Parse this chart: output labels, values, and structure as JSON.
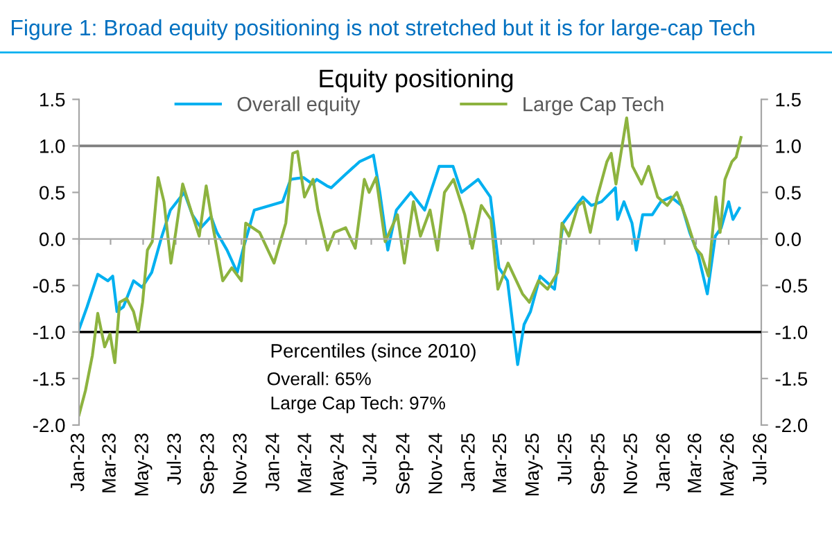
{
  "chart_data": {
    "type": "line",
    "title": "Figure 1: Broad equity positioning is not stretched but it is for large-cap Tech",
    "subtitle": "Equity positioning",
    "xlim": [
      "2023-01-01",
      "2026-07-01"
    ],
    "xticks": [
      {
        "value": "2023-01-01",
        "label": "Jan-23"
      },
      {
        "value": "2023-03-01",
        "label": "Mar-23"
      },
      {
        "value": "2023-05-01",
        "label": "May-23"
      },
      {
        "value": "2023-07-01",
        "label": "Jul-23"
      },
      {
        "value": "2023-09-01",
        "label": "Sep-23"
      },
      {
        "value": "2023-11-01",
        "label": "Nov-23"
      },
      {
        "value": "2024-01-01",
        "label": "Jan-24"
      },
      {
        "value": "2024-03-01",
        "label": "Mar-24"
      },
      {
        "value": "2024-05-01",
        "label": "May-24"
      },
      {
        "value": "2024-07-01",
        "label": "Jul-24"
      },
      {
        "value": "2024-09-01",
        "label": "Sep-24"
      },
      {
        "value": "2024-11-01",
        "label": "Nov-24"
      },
      {
        "value": "2025-01-01",
        "label": "Jan-25"
      },
      {
        "value": "2025-03-01",
        "label": "Mar-25"
      },
      {
        "value": "2025-05-01",
        "label": "May-25"
      },
      {
        "value": "2025-07-01",
        "label": "Jul-25"
      },
      {
        "value": "2025-09-01",
        "label": "Sep-25"
      },
      {
        "value": "2025-11-01",
        "label": "Nov-25"
      },
      {
        "value": "2026-01-01",
        "label": "Jan-26"
      },
      {
        "value": "2026-03-01",
        "label": "Mar-26"
      },
      {
        "value": "2026-05-01",
        "label": "May-26"
      },
      {
        "value": "2026-07-01",
        "label": "Jul-26"
      }
    ],
    "ylim": [
      -2.0,
      1.5
    ],
    "yticks": [
      {
        "value": -2.0,
        "label": "-2.0"
      },
      {
        "value": -1.5,
        "label": "-1.5"
      },
      {
        "value": -1.0,
        "label": "-1.0"
      },
      {
        "value": -0.5,
        "label": "-0.5"
      },
      {
        "value": 0.0,
        "label": "0.0"
      },
      {
        "value": 0.5,
        "label": "0.5"
      },
      {
        "value": 1.0,
        "label": "1.0"
      },
      {
        "value": 1.5,
        "label": "1.5"
      }
    ],
    "y2lim": [
      -2.0,
      1.5
    ],
    "y2ticks": [
      {
        "value": -2.0,
        "label": "-2.0"
      },
      {
        "value": -1.5,
        "label": "-1.5"
      },
      {
        "value": -1.0,
        "label": "-1.0"
      },
      {
        "value": -0.5,
        "label": "-0.5"
      },
      {
        "value": 0.0,
        "label": "0.0"
      },
      {
        "value": 0.5,
        "label": "0.5"
      },
      {
        "value": 1.0,
        "label": "1.0"
      },
      {
        "value": 1.5,
        "label": "1.5"
      }
    ],
    "ref_lines": [
      {
        "axis": "y",
        "value": 1.0,
        "label": null,
        "color": "#7f7f7f"
      },
      {
        "axis": "y",
        "value": -1.0,
        "label": null,
        "color": "#000000"
      }
    ],
    "grid": false,
    "legend": "top",
    "marker": "none",
    "line_style": "solid",
    "annotations": [
      "Percentiles (since 2010)",
      "Overall: 65%",
      "Large Cap Tech: 97%"
    ],
    "series": [
      {
        "name": "Overall equity",
        "color": "#00b0f0",
        "x": [
          "2023-01-01",
          "2023-01-16",
          "2023-02-05",
          "2023-02-24",
          "2023-03-05",
          "2023-03-13",
          "2023-03-25",
          "2023-04-13",
          "2023-04-29",
          "2023-05-17",
          "2023-06-05",
          "2023-06-21",
          "2023-07-17",
          "2023-08-01",
          "2023-08-17",
          "2023-09-05",
          "2023-09-16",
          "2023-10-05",
          "2023-10-24",
          "2023-11-05",
          "2023-11-25",
          "2023-12-25",
          "2024-01-17",
          "2024-02-01",
          "2024-02-25",
          "2024-03-13",
          "2024-03-21",
          "2024-04-09",
          "2024-04-17",
          "2024-05-13",
          "2024-06-09",
          "2024-07-05",
          "2024-07-17",
          "2024-08-01",
          "2024-08-17",
          "2024-09-13",
          "2024-10-09",
          "2024-11-05",
          "2024-12-01",
          "2024-12-17",
          "2025-01-17",
          "2025-02-09",
          "2025-02-25",
          "2025-03-13",
          "2025-04-01",
          "2025-04-13",
          "2025-04-25",
          "2025-05-13",
          "2025-06-09",
          "2025-06-25",
          "2025-07-13",
          "2025-08-01",
          "2025-08-17",
          "2025-09-05",
          "2025-10-01",
          "2025-10-05",
          "2025-10-17",
          "2025-11-01",
          "2025-11-09",
          "2025-11-21",
          "2025-12-09",
          "2025-12-25",
          "2026-01-13",
          "2026-02-02",
          "2026-02-17",
          "2026-03-05",
          "2026-03-22",
          "2026-04-06",
          "2026-04-17",
          "2026-05-01",
          "2026-05-09",
          "2026-05-21"
        ],
        "values": [
          -0.97,
          -0.73,
          -0.38,
          -0.45,
          -0.4,
          -0.78,
          -0.73,
          -0.45,
          -0.52,
          -0.36,
          0.03,
          0.31,
          0.5,
          0.26,
          0.12,
          0.24,
          0.07,
          -0.12,
          -0.36,
          -0.09,
          0.31,
          0.36,
          0.4,
          0.64,
          0.66,
          0.59,
          0.64,
          0.57,
          0.55,
          0.69,
          0.83,
          0.9,
          0.5,
          -0.12,
          0.31,
          0.5,
          0.31,
          0.78,
          0.78,
          0.5,
          0.64,
          0.45,
          -0.31,
          -0.45,
          -1.35,
          -0.92,
          -0.78,
          -0.4,
          -0.54,
          0.17,
          0.31,
          0.45,
          0.36,
          0.4,
          0.55,
          0.21,
          0.4,
          0.17,
          -0.12,
          0.26,
          0.26,
          0.4,
          0.45,
          0.36,
          0.07,
          -0.17,
          -0.59,
          0.03,
          0.12,
          0.4,
          0.21,
          0.33
        ]
      },
      {
        "name": "Large Cap Tech",
        "color": "#8db33f",
        "x": [
          "2023-01-01",
          "2023-01-13",
          "2023-01-26",
          "2023-02-05",
          "2023-02-18",
          "2023-02-28",
          "2023-03-09",
          "2023-03-18",
          "2023-03-31",
          "2023-04-13",
          "2023-04-22",
          "2023-04-30",
          "2023-05-09",
          "2023-05-18",
          "2023-05-29",
          "2023-06-09",
          "2023-06-22",
          "2023-07-01",
          "2023-07-14",
          "2023-08-01",
          "2023-08-14",
          "2023-08-27",
          "2023-09-09",
          "2023-09-27",
          "2023-10-14",
          "2023-11-01",
          "2023-11-09",
          "2023-12-05",
          "2024-01-01",
          "2024-01-23",
          "2024-02-05",
          "2024-02-14",
          "2024-02-27",
          "2024-03-14",
          "2024-03-23",
          "2024-04-10",
          "2024-04-23",
          "2024-05-14",
          "2024-06-01",
          "2024-06-18",
          "2024-06-27",
          "2024-07-10",
          "2024-07-27",
          "2024-08-19",
          "2024-09-01",
          "2024-09-18",
          "2024-10-01",
          "2024-10-19",
          "2024-11-02",
          "2024-11-15",
          "2024-12-02",
          "2024-12-23",
          "2025-01-06",
          "2025-01-23",
          "2025-02-10",
          "2025-02-23",
          "2025-03-14",
          "2025-04-10",
          "2025-04-23",
          "2025-05-10",
          "2025-05-27",
          "2025-06-15",
          "2025-06-23",
          "2025-07-06",
          "2025-07-23",
          "2025-08-02",
          "2025-08-15",
          "2025-08-28",
          "2025-09-15",
          "2025-09-23",
          "2025-10-02",
          "2025-10-22",
          "2025-11-02",
          "2025-11-19",
          "2025-12-02",
          "2025-12-19",
          "2026-01-06",
          "2026-01-24",
          "2026-02-11",
          "2026-02-28",
          "2026-03-11",
          "2026-03-24",
          "2026-04-07",
          "2026-04-15",
          "2026-04-24",
          "2026-05-07",
          "2026-05-15",
          "2026-05-24"
        ],
        "values": [
          -1.89,
          -1.63,
          -1.25,
          -0.8,
          -1.16,
          -1.02,
          -1.33,
          -0.68,
          -0.64,
          -0.78,
          -0.99,
          -0.68,
          -0.12,
          -0.03,
          0.66,
          0.4,
          -0.26,
          0.07,
          0.59,
          0.26,
          0.03,
          0.57,
          0.12,
          -0.45,
          -0.31,
          -0.45,
          0.17,
          0.07,
          -0.26,
          0.17,
          0.92,
          0.94,
          0.45,
          0.64,
          0.31,
          -0.12,
          0.07,
          0.12,
          -0.1,
          0.64,
          0.5,
          0.66,
          -0.03,
          0.26,
          -0.26,
          0.4,
          0.03,
          0.31,
          -0.12,
          0.5,
          0.64,
          0.26,
          -0.1,
          0.36,
          0.21,
          -0.54,
          -0.26,
          -0.59,
          -0.68,
          -0.45,
          -0.54,
          -0.36,
          0.17,
          0.03,
          0.36,
          0.4,
          0.07,
          0.45,
          0.83,
          0.92,
          0.59,
          1.3,
          0.78,
          0.59,
          0.78,
          0.45,
          0.36,
          0.5,
          0.21,
          -0.1,
          -0.17,
          -0.4,
          0.45,
          0.07,
          0.64,
          0.83,
          0.88,
          1.09
        ]
      }
    ]
  }
}
